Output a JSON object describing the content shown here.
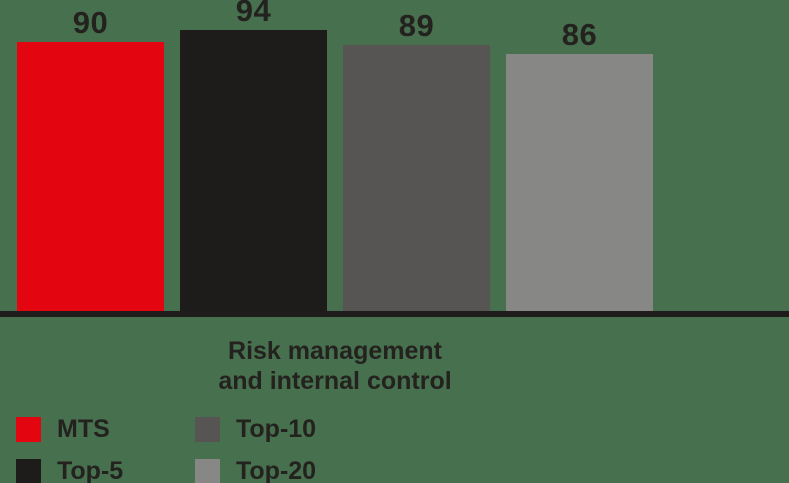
{
  "chart_data": {
    "type": "bar",
    "title": "",
    "categories": [
      "Risk management and internal control"
    ],
    "series": [
      {
        "name": "MTS",
        "values": [
          90
        ],
        "color": "#E30611"
      },
      {
        "name": "Top-5",
        "values": [
          94
        ],
        "color": "#1D1C1B"
      },
      {
        "name": "Top-10",
        "values": [
          89
        ],
        "color": "#565554"
      },
      {
        "name": "Top-20",
        "values": [
          86
        ],
        "color": "#878786"
      }
    ],
    "value_labels": [
      90,
      94,
      89,
      86
    ],
    "xlabel": "",
    "ylabel": "",
    "ylim": [
      0,
      104
    ],
    "grid": false,
    "axis_ticks_shown": false,
    "legend_position": "bottom-left"
  },
  "colors": {
    "background": "#47704E",
    "axis_line": "#1E1D1B",
    "text": "#24221F"
  },
  "category_label": {
    "line1": "Risk management",
    "line2": "and internal control"
  },
  "legend": {
    "items": [
      {
        "label": "MTS",
        "color": "#E30611"
      },
      {
        "label": "Top-5",
        "color": "#1D1C1B"
      },
      {
        "label": "Top-10",
        "color": "#565554"
      },
      {
        "label": "Top-20",
        "color": "#878786"
      }
    ]
  }
}
